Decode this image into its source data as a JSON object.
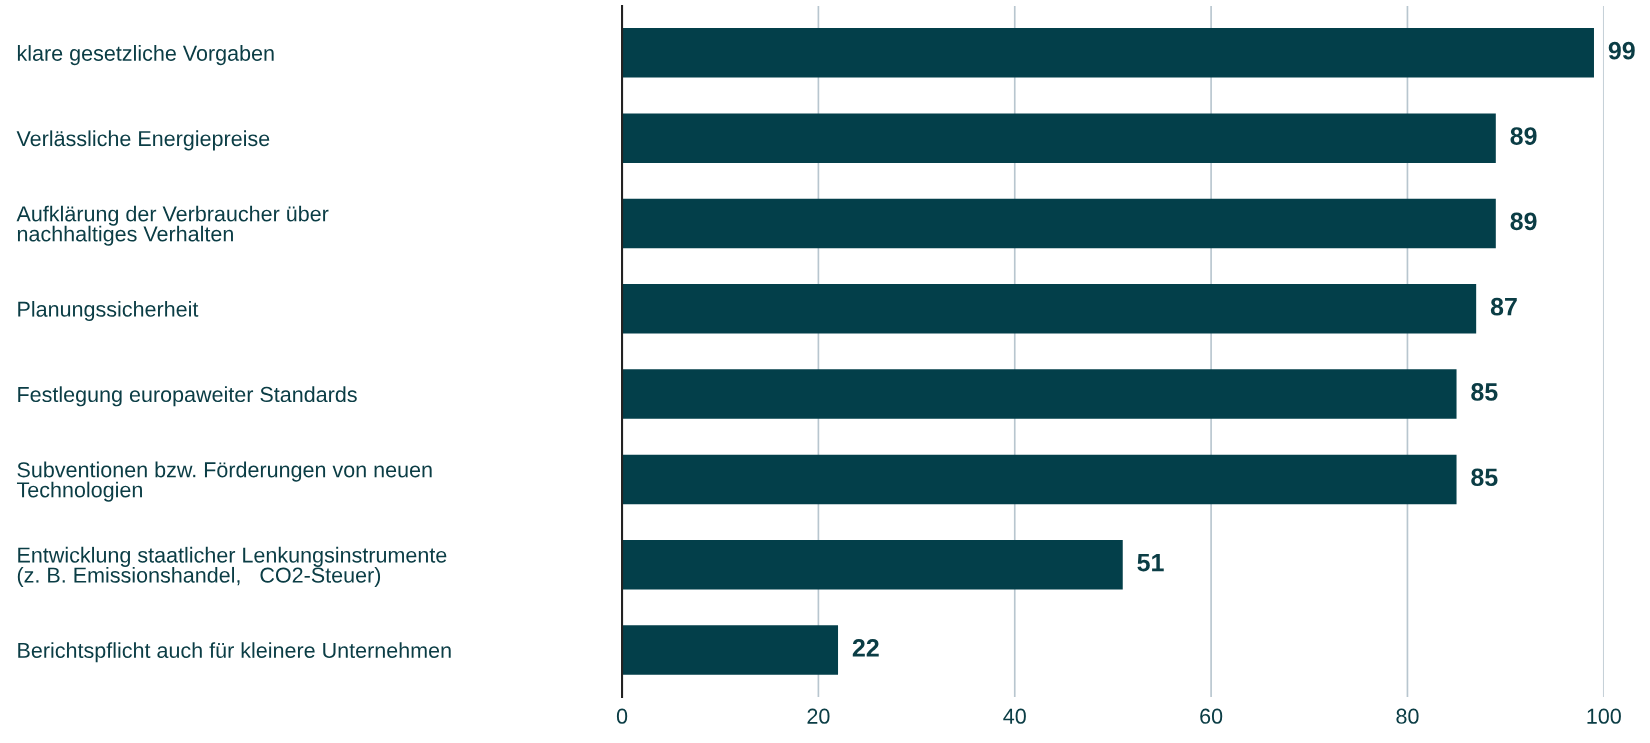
{
  "chart_data": {
    "type": "bar",
    "orientation": "horizontal",
    "categories": [
      "klare gesetzliche Vorgaben",
      "Verlässliche Energiepreise",
      "Aufklärung der Verbraucher über\nnachhaltiges Verhalten",
      "Planungssicherheit",
      "Festlegung europaweiter Standards",
      "Subventionen bzw. Förderungen von neuen\nTechnologien",
      "Entwicklung staatlicher Lenkungsinstrumente\n(z. B. Emissionshandel,   CO2-Steuer)",
      "Berichtspflicht auch für kleinere Unternehmen"
    ],
    "values": [
      99,
      89,
      89,
      87,
      85,
      85,
      51,
      22
    ],
    "color": "#033f4a",
    "xlim": [
      0,
      100
    ],
    "xticks": [
      0,
      20,
      40,
      60,
      80,
      100
    ],
    "grid": "x",
    "data_labels": true
  }
}
